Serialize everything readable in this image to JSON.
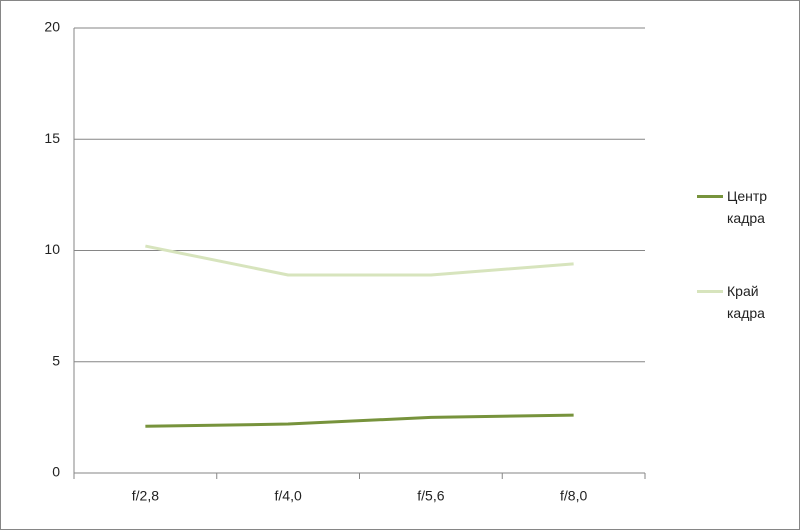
{
  "chart_data": {
    "type": "line",
    "categories": [
      "f/2,8",
      "f/4,0",
      "f/5,6",
      "f/8,0"
    ],
    "series": [
      {
        "name": "Центр кадра",
        "color": "#77933c",
        "values": [
          2.1,
          2.2,
          2.5,
          2.6
        ]
      },
      {
        "name": "Край кадра",
        "color": "#d7e4bd",
        "values": [
          10.2,
          8.9,
          8.9,
          9.4
        ]
      }
    ],
    "ylim": [
      0,
      20
    ],
    "yticks": [
      0,
      5,
      10,
      15,
      20
    ],
    "grid": true,
    "legend": "right"
  }
}
